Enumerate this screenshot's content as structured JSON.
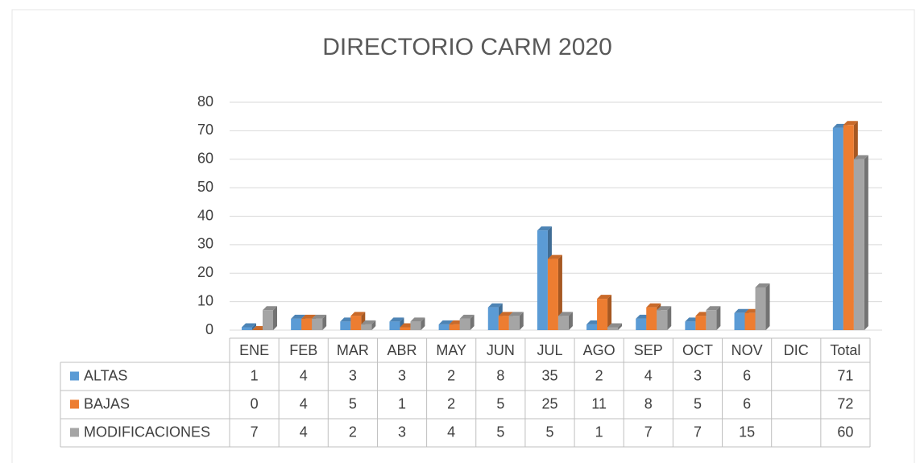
{
  "chart_data": {
    "type": "bar",
    "title": "DIRECTORIO CARM 2020",
    "categories": [
      "ENE",
      "FEB",
      "MAR",
      "ABR",
      "MAY",
      "JUN",
      "JUL",
      "AGO",
      "SEP",
      "OCT",
      "NOV",
      "DIC",
      "Total"
    ],
    "series": [
      {
        "name": "ALTAS",
        "color": "#5b9bd5",
        "values": [
          1,
          4,
          3,
          3,
          2,
          8,
          35,
          2,
          4,
          3,
          6,
          null,
          71
        ]
      },
      {
        "name": "BAJAS",
        "color": "#ed7d31",
        "values": [
          0,
          4,
          5,
          1,
          2,
          5,
          25,
          11,
          8,
          5,
          6,
          null,
          72
        ]
      },
      {
        "name": "MODIFICACIONES",
        "color": "#a5a5a5",
        "values": [
          7,
          4,
          2,
          3,
          4,
          5,
          5,
          1,
          7,
          7,
          15,
          null,
          60
        ]
      }
    ],
    "ylim": [
      0,
      80
    ],
    "yticks": [
      0,
      10,
      20,
      30,
      40,
      50,
      60,
      70,
      80
    ],
    "grid": true
  }
}
